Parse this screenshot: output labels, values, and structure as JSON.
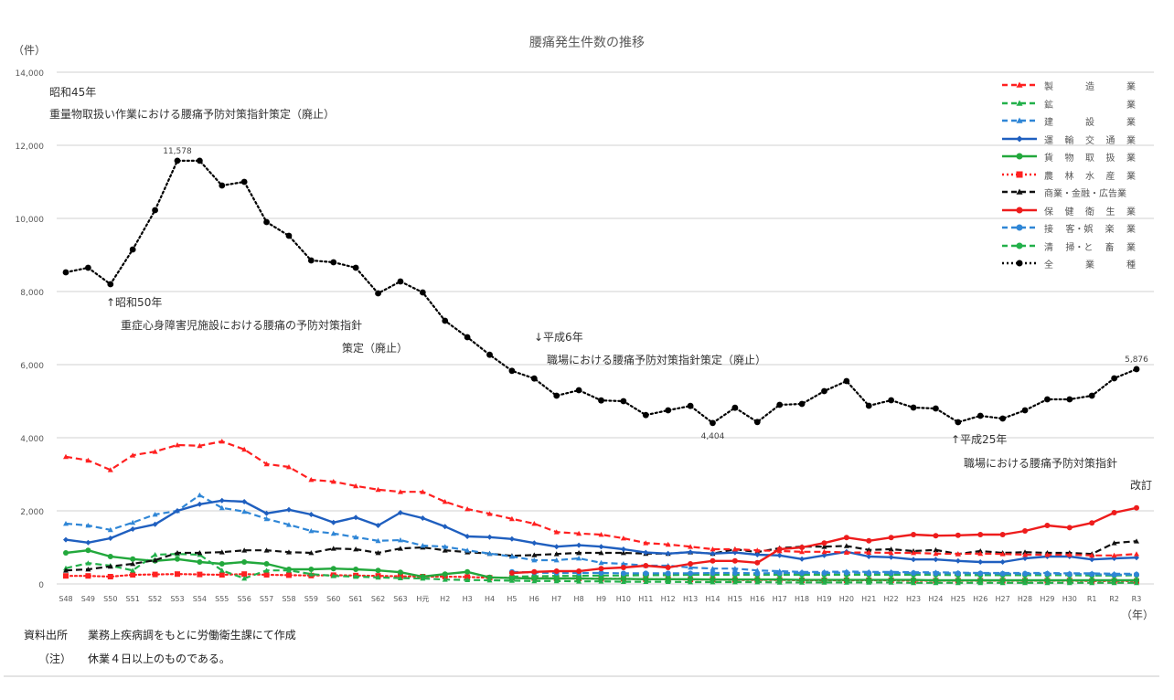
{
  "page_title": "腰痛発生件数の推移",
  "footnotes": {
    "source_label": "資料出所",
    "source_text": "業務上疾病調をもとに労働衛生課にて作成",
    "note_label": "（注）",
    "note_text": "休業４日以上のものである。"
  },
  "annotations": {
    "s45_year": "昭和45年",
    "s45_text": "重量物取扱い作業における腰痛予防対策指針策定（廃止）",
    "s50_year": "↑昭和50年",
    "s50_text": "重症心身障害児施設における腰痛の予防対策指針",
    "s50_text2": "策定（廃止）",
    "h6_year": "↓平成6年",
    "h6_text": "職場における腰痛予防対策指針策定（廃止）",
    "h25_year": "↑平成25年",
    "h25_text": "職場における腰痛予防対策指針",
    "h25_text2": "改訂"
  },
  "chart_data": {
    "type": "line",
    "title": "腰痛発生件数の推移",
    "ylabel": "（件）",
    "xlabel": "（年）",
    "ylim": [
      0,
      14000
    ],
    "yticks": [
      0,
      2000,
      4000,
      6000,
      8000,
      10000,
      12000,
      14000
    ],
    "ytick_labels": [
      "0",
      "2,000",
      "4,000",
      "6,000",
      "8,000",
      "10,000",
      "12,000",
      "14,000"
    ],
    "grid": true,
    "legend_position": "top-right",
    "categories": [
      "S48",
      "S49",
      "S50",
      "S51",
      "S52",
      "S53",
      "S54",
      "S55",
      "S56",
      "S57",
      "S58",
      "S59",
      "S60",
      "S61",
      "S62",
      "S63",
      "H元",
      "H2",
      "H3",
      "H4",
      "H5",
      "H6",
      "H7",
      "H8",
      "H9",
      "H10",
      "H11",
      "H12",
      "H13",
      "H14",
      "H15",
      "H16",
      "H17",
      "H18",
      "H19",
      "H20",
      "H21",
      "H22",
      "H23",
      "H24",
      "H25",
      "H26",
      "H27",
      "H28",
      "H29",
      "H30",
      "R1",
      "R2",
      "R3"
    ],
    "data_labels": [
      {
        "series": "全業種",
        "category": "S53",
        "text": "11,578"
      },
      {
        "series": "全業種",
        "category": "H14",
        "text": "4,404"
      },
      {
        "series": "全業種",
        "category": "R3",
        "text": "5,876"
      }
    ],
    "series": [
      {
        "name": "製造業",
        "label_chars": [
          "製",
          "造",
          "業"
        ],
        "color": "#ff2020",
        "style": "dashed",
        "marker": "triangle",
        "values": [
          3480,
          3380,
          3120,
          3520,
          3620,
          3800,
          3780,
          3900,
          3680,
          3280,
          3200,
          2850,
          2800,
          2680,
          2580,
          2520,
          2520,
          2250,
          2050,
          1920,
          1780,
          1650,
          1420,
          1380,
          1350,
          1250,
          1120,
          1080,
          1020,
          950,
          950,
          920,
          900,
          880,
          880,
          860,
          860,
          850,
          850,
          830,
          820,
          830,
          820,
          800,
          800,
          800,
          780,
          780,
          820
        ]
      },
      {
        "name": "鉱業",
        "label_chars": [
          "鉱",
          "業"
        ],
        "color": "#22b04a",
        "style": "dashed",
        "marker": "triangle",
        "values": [
          430,
          570,
          500,
          370,
          800,
          820,
          800,
          370,
          150,
          370,
          370,
          270,
          220,
          200,
          180,
          160,
          150,
          120,
          110,
          100,
          90,
          80,
          80,
          70,
          70,
          60,
          60,
          60,
          50,
          50,
          50,
          50,
          40,
          40,
          40,
          40,
          40,
          40,
          30,
          30,
          30,
          30,
          30,
          30,
          30,
          30,
          30,
          30,
          30
        ]
      },
      {
        "name": "建設業",
        "label_chars": [
          "建",
          "設",
          "業"
        ],
        "color": "#2f86d6",
        "style": "dashed",
        "marker": "triangle",
        "values": [
          1650,
          1600,
          1480,
          1680,
          1900,
          2000,
          2430,
          2080,
          1980,
          1780,
          1620,
          1450,
          1380,
          1280,
          1180,
          1200,
          1050,
          1020,
          920,
          830,
          750,
          650,
          650,
          700,
          580,
          550,
          500,
          500,
          450,
          420,
          420,
          370,
          350,
          330,
          330,
          340,
          330,
          330,
          320,
          320,
          310,
          300,
          300,
          300,
          300,
          290,
          290,
          280,
          280
        ]
      },
      {
        "name": "運輸交通業",
        "label_chars": [
          "運",
          "輸",
          "交",
          "通",
          "業"
        ],
        "color": "#1f5fbf",
        "style": "solid",
        "marker": "diamond",
        "values": [
          1210,
          1130,
          1250,
          1500,
          1630,
          2000,
          2180,
          2280,
          2250,
          1930,
          2030,
          1900,
          1680,
          1820,
          1600,
          1950,
          1800,
          1570,
          1300,
          1280,
          1230,
          1120,
          1020,
          1060,
          1020,
          950,
          860,
          830,
          870,
          830,
          860,
          800,
          780,
          680,
          780,
          880,
          750,
          730,
          670,
          670,
          630,
          600,
          600,
          700,
          750,
          750,
          670,
          700,
          720
        ]
      },
      {
        "name": "貨物取扱業",
        "label_chars": [
          "貨",
          "物",
          "取",
          "扱",
          "業"
        ],
        "color": "#22a83c",
        "style": "solid",
        "marker": "circle",
        "values": [
          850,
          920,
          750,
          680,
          630,
          680,
          600,
          550,
          600,
          550,
          400,
          400,
          420,
          400,
          370,
          320,
          200,
          270,
          330,
          180,
          160,
          150,
          150,
          150,
          140,
          140,
          130,
          130,
          130,
          120,
          120,
          120,
          120,
          110,
          110,
          110,
          110,
          110,
          110,
          100,
          100,
          100,
          100,
          100,
          100,
          100,
          100,
          100,
          100
        ]
      },
      {
        "name": "農林水産業",
        "label_chars": [
          "農",
          "林",
          "水",
          "産",
          "業"
        ],
        "color": "#ff2020",
        "style": "dotted",
        "marker": "square",
        "values": [
          220,
          220,
          200,
          250,
          260,
          270,
          260,
          250,
          270,
          250,
          240,
          230,
          240,
          230,
          220,
          210,
          200,
          200,
          190,
          170,
          170,
          160,
          150,
          150,
          140,
          140,
          130,
          130,
          120,
          120,
          110,
          110,
          110,
          100,
          100,
          100,
          100,
          100,
          90,
          90,
          90,
          90,
          90,
          90,
          90,
          90,
          80,
          80,
          80
        ]
      },
      {
        "name": "商業・金融・広告業",
        "label_chars": [
          "商業・金融・広告業"
        ],
        "color": "#111111",
        "style": "dashed",
        "marker": "triangle",
        "values": [
          370,
          400,
          480,
          550,
          650,
          850,
          850,
          870,
          920,
          920,
          870,
          850,
          970,
          950,
          850,
          970,
          1000,
          920,
          870,
          830,
          770,
          790,
          820,
          850,
          850,
          850,
          830,
          830,
          870,
          830,
          950,
          870,
          980,
          1020,
          1020,
          1040,
          930,
          950,
          900,
          930,
          820,
          900,
          850,
          870,
          850,
          850,
          820,
          1120,
          1170
        ]
      },
      {
        "name": "保健衛生業",
        "label_chars": [
          "保",
          "健",
          "衛",
          "生",
          "業"
        ],
        "color": "#ee1c1c",
        "style": "solid",
        "marker": "circle",
        "values": [
          null,
          null,
          null,
          null,
          null,
          null,
          null,
          null,
          null,
          null,
          null,
          null,
          null,
          null,
          null,
          null,
          null,
          null,
          null,
          null,
          300,
          330,
          350,
          350,
          420,
          450,
          500,
          450,
          550,
          630,
          630,
          580,
          950,
          1000,
          1120,
          1270,
          1180,
          1270,
          1350,
          1320,
          1330,
          1350,
          1350,
          1450,
          1600,
          1540,
          1670,
          1950,
          2080
        ]
      },
      {
        "name": "接客・娯楽業",
        "label_chars": [
          "接",
          "客・娯",
          "楽",
          "業"
        ],
        "color": "#2f86d6",
        "style": "dashed",
        "marker": "circle",
        "values": [
          null,
          null,
          null,
          null,
          null,
          null,
          null,
          null,
          null,
          null,
          null,
          null,
          null,
          null,
          null,
          null,
          null,
          null,
          null,
          null,
          330,
          310,
          300,
          300,
          300,
          290,
          290,
          290,
          290,
          300,
          300,
          290,
          300,
          300,
          300,
          310,
          300,
          300,
          300,
          290,
          290,
          290,
          280,
          280,
          280,
          270,
          270,
          250,
          260
        ]
      },
      {
        "name": "清掃・と畜業",
        "label_chars": [
          "清",
          "掃・と",
          "畜",
          "業"
        ],
        "color": "#22b04a",
        "style": "dashed",
        "marker": "circle",
        "values": [
          null,
          null,
          null,
          null,
          null,
          null,
          null,
          null,
          null,
          null,
          null,
          null,
          null,
          null,
          null,
          null,
          null,
          null,
          null,
          null,
          200,
          210,
          220,
          220,
          230,
          230,
          240,
          240,
          250,
          250,
          250,
          250,
          250,
          250,
          250,
          250,
          250,
          250,
          250,
          250,
          240,
          240,
          240,
          240,
          240,
          240,
          230,
          230,
          240
        ]
      },
      {
        "name": "全業種",
        "label_chars": [
          "全",
          "業",
          "種"
        ],
        "color": "#000000",
        "style": "dotted",
        "marker": "circle",
        "values": [
          8525,
          8650,
          8200,
          9150,
          10225,
          11578,
          11578,
          10900,
          11000,
          9900,
          9525,
          8850,
          8800,
          8650,
          7950,
          8275,
          7975,
          7200,
          6750,
          6270,
          5830,
          5620,
          5150,
          5300,
          5020,
          5000,
          4620,
          4750,
          4870,
          4404,
          4820,
          4430,
          4900,
          4925,
          5275,
          5550,
          4875,
          5025,
          4825,
          4800,
          4425,
          4600,
          4525,
          4750,
          5050,
          5050,
          5150,
          5625,
          5876
        ]
      }
    ]
  }
}
